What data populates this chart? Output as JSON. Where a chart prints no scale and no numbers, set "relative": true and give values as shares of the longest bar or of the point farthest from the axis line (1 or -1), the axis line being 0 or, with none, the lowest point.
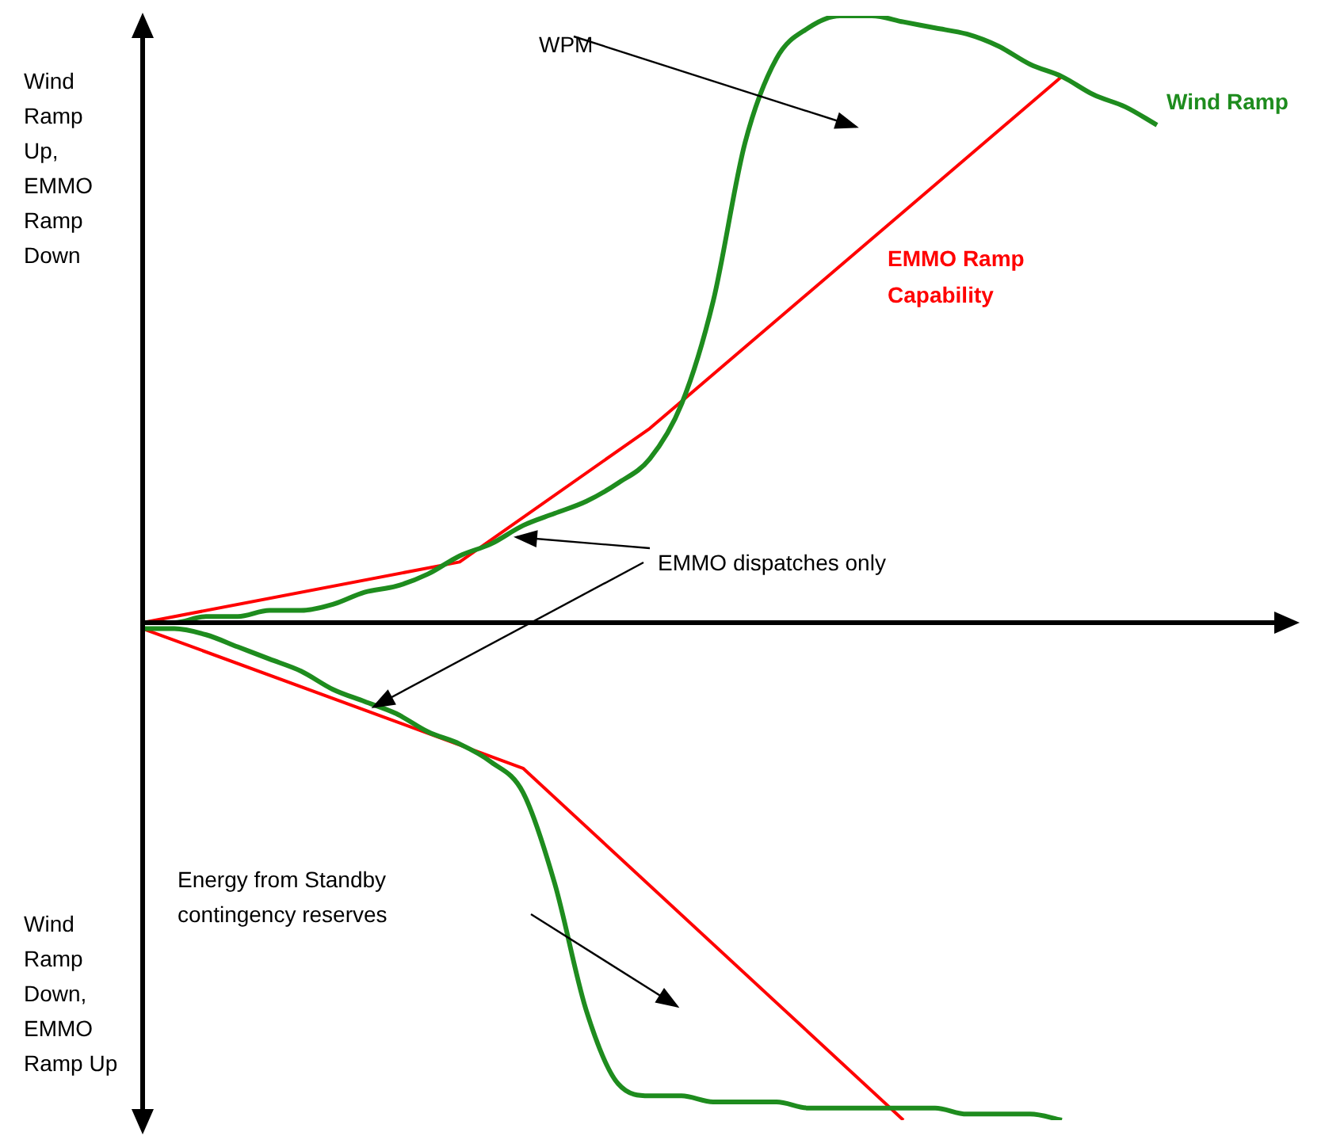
{
  "chart_data": {
    "type": "line",
    "relative": true,
    "legend": false,
    "marker": "none",
    "categories": [
      null,
      null,
      null,
      null,
      null,
      null,
      null,
      null,
      null,
      null,
      null,
      null,
      null,
      null,
      null,
      null,
      null,
      null,
      null,
      null,
      null,
      null,
      null,
      null,
      null,
      null,
      null,
      null,
      null,
      null,
      null,
      null,
      null
    ],
    "series": [
      {
        "name": "Wind Ramp",
        "color": "#1e8c1e",
        "values": [
          0,
          0,
          0.01,
          0.01,
          0.02,
          0.02,
          0.03,
          0.05,
          0.06,
          0.08,
          0.11,
          0.13,
          0.16,
          0.18,
          0.2,
          0.23,
          0.27,
          0.36,
          0.53,
          0.79,
          0.93,
          0.98,
          1,
          1,
          0.99,
          0.98,
          0.97,
          0.95,
          0.92,
          0.9,
          0.87,
          0.85,
          0.82
        ]
      },
      {
        "name": "EMMO Ramp Capability",
        "color": "#ff0000",
        "values": [
          0,
          null,
          null,
          null,
          null,
          null,
          null,
          null,
          null,
          null,
          0.1,
          null,
          null,
          null,
          null,
          null,
          0.32,
          null,
          null,
          null,
          null,
          null,
          null,
          null,
          null,
          null,
          null,
          null,
          null,
          0.9,
          null,
          null,
          null
        ]
      },
      {
        "color": "#1e8c1e",
        "values": [
          -0.01,
          -0.01,
          -0.02,
          -0.04,
          -0.06,
          -0.08,
          -0.11,
          -0.13,
          -0.15,
          -0.18,
          -0.2,
          -0.23,
          -0.28,
          -0.43,
          -0.64,
          -0.76,
          -0.78,
          -0.78,
          -0.79,
          -0.79,
          -0.79,
          -0.8,
          -0.8,
          -0.8,
          -0.8,
          -0.8,
          -0.81,
          -0.81,
          -0.81,
          -0.82,
          null,
          null,
          null
        ]
      },
      {
        "color": "#ff0000",
        "values": [
          -0.01,
          null,
          null,
          null,
          null,
          null,
          null,
          null,
          null,
          null,
          null,
          null,
          -0.24,
          null,
          null,
          null,
          null,
          null,
          null,
          null,
          null,
          null,
          null,
          null,
          -0.82,
          null,
          null,
          null,
          null,
          null,
          null,
          null,
          null
        ]
      }
    ],
    "annotations": [
      "Wind Ramp Up, EMMO Ramp Down",
      "Wind Ramp Down, EMMO Ramp Up",
      "WPM",
      "EMMO dispatches only",
      "Energy from Standby contingency reserves"
    ]
  }
}
